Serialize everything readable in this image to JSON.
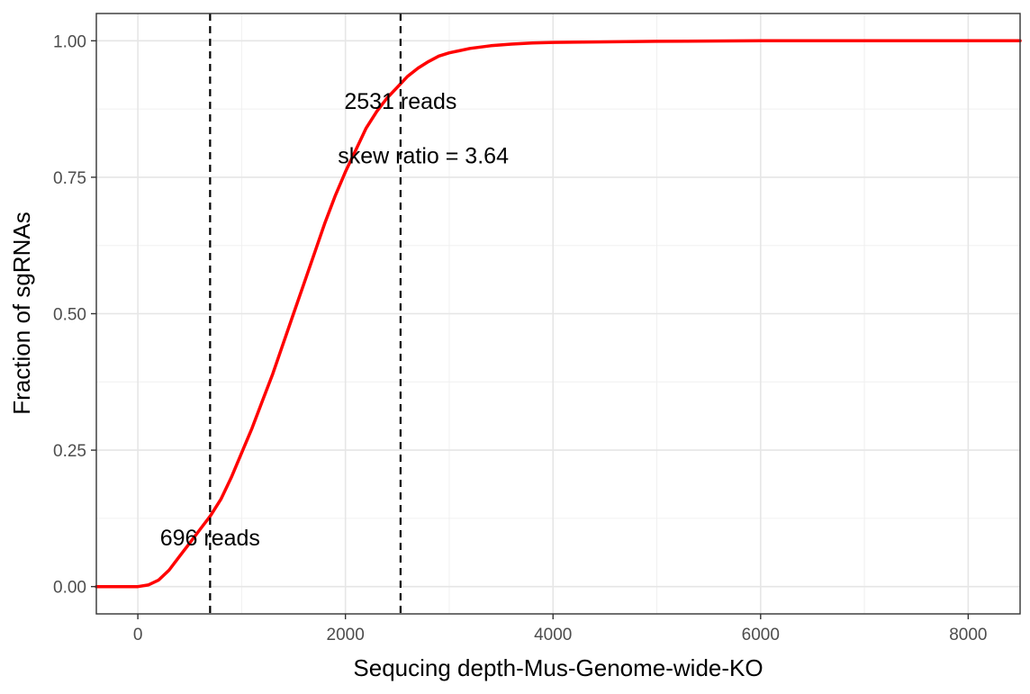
{
  "chart_data": {
    "type": "line",
    "title": "",
    "xlabel": "Sequcing depth-Mus-Genome-wide-KO",
    "ylabel": "Fraction of sgRNAs",
    "xlim": [
      -400,
      8500
    ],
    "ylim": [
      -0.05,
      1.05
    ],
    "x_ticks": [
      0,
      2000,
      4000,
      6000,
      8000
    ],
    "x_tick_labels": [
      "0",
      "2000",
      "4000",
      "6000",
      "8000"
    ],
    "y_ticks": [
      0,
      0.25,
      0.5,
      0.75,
      1.0
    ],
    "y_tick_labels": [
      "0.00",
      "0.25",
      "0.50",
      "0.75",
      "1.00"
    ],
    "grid": true,
    "line_color": "#ff0000",
    "series": [
      {
        "x": [
          -400,
          0,
          100,
          200,
          300,
          400,
          500,
          600,
          700,
          800,
          900,
          1000,
          1100,
          1200,
          1300,
          1400,
          1500,
          1600,
          1700,
          1800,
          1900,
          2000,
          2100,
          2200,
          2300,
          2400,
          2500,
          2600,
          2700,
          2800,
          2900,
          3000,
          3200,
          3400,
          3600,
          3800,
          4000,
          4500,
          5000,
          6000,
          7000,
          8000,
          8500
        ],
        "y": [
          0.0,
          0.0,
          0.003,
          0.012,
          0.03,
          0.055,
          0.08,
          0.105,
          0.13,
          0.16,
          0.2,
          0.245,
          0.29,
          0.34,
          0.39,
          0.445,
          0.5,
          0.555,
          0.61,
          0.665,
          0.715,
          0.76,
          0.8,
          0.84,
          0.87,
          0.895,
          0.915,
          0.935,
          0.95,
          0.962,
          0.972,
          0.978,
          0.986,
          0.991,
          0.994,
          0.996,
          0.997,
          0.998,
          0.999,
          1.0,
          1.0,
          1.0,
          1.0
        ]
      }
    ],
    "vlines": [
      {
        "x": 696,
        "label": "696 reads",
        "label_y": 0.09
      },
      {
        "x": 2531,
        "label": "2531 reads",
        "label_y": 0.89
      }
    ],
    "annotation": {
      "text": "skew ratio = 3.64",
      "x": 2750,
      "y": 0.79
    }
  }
}
